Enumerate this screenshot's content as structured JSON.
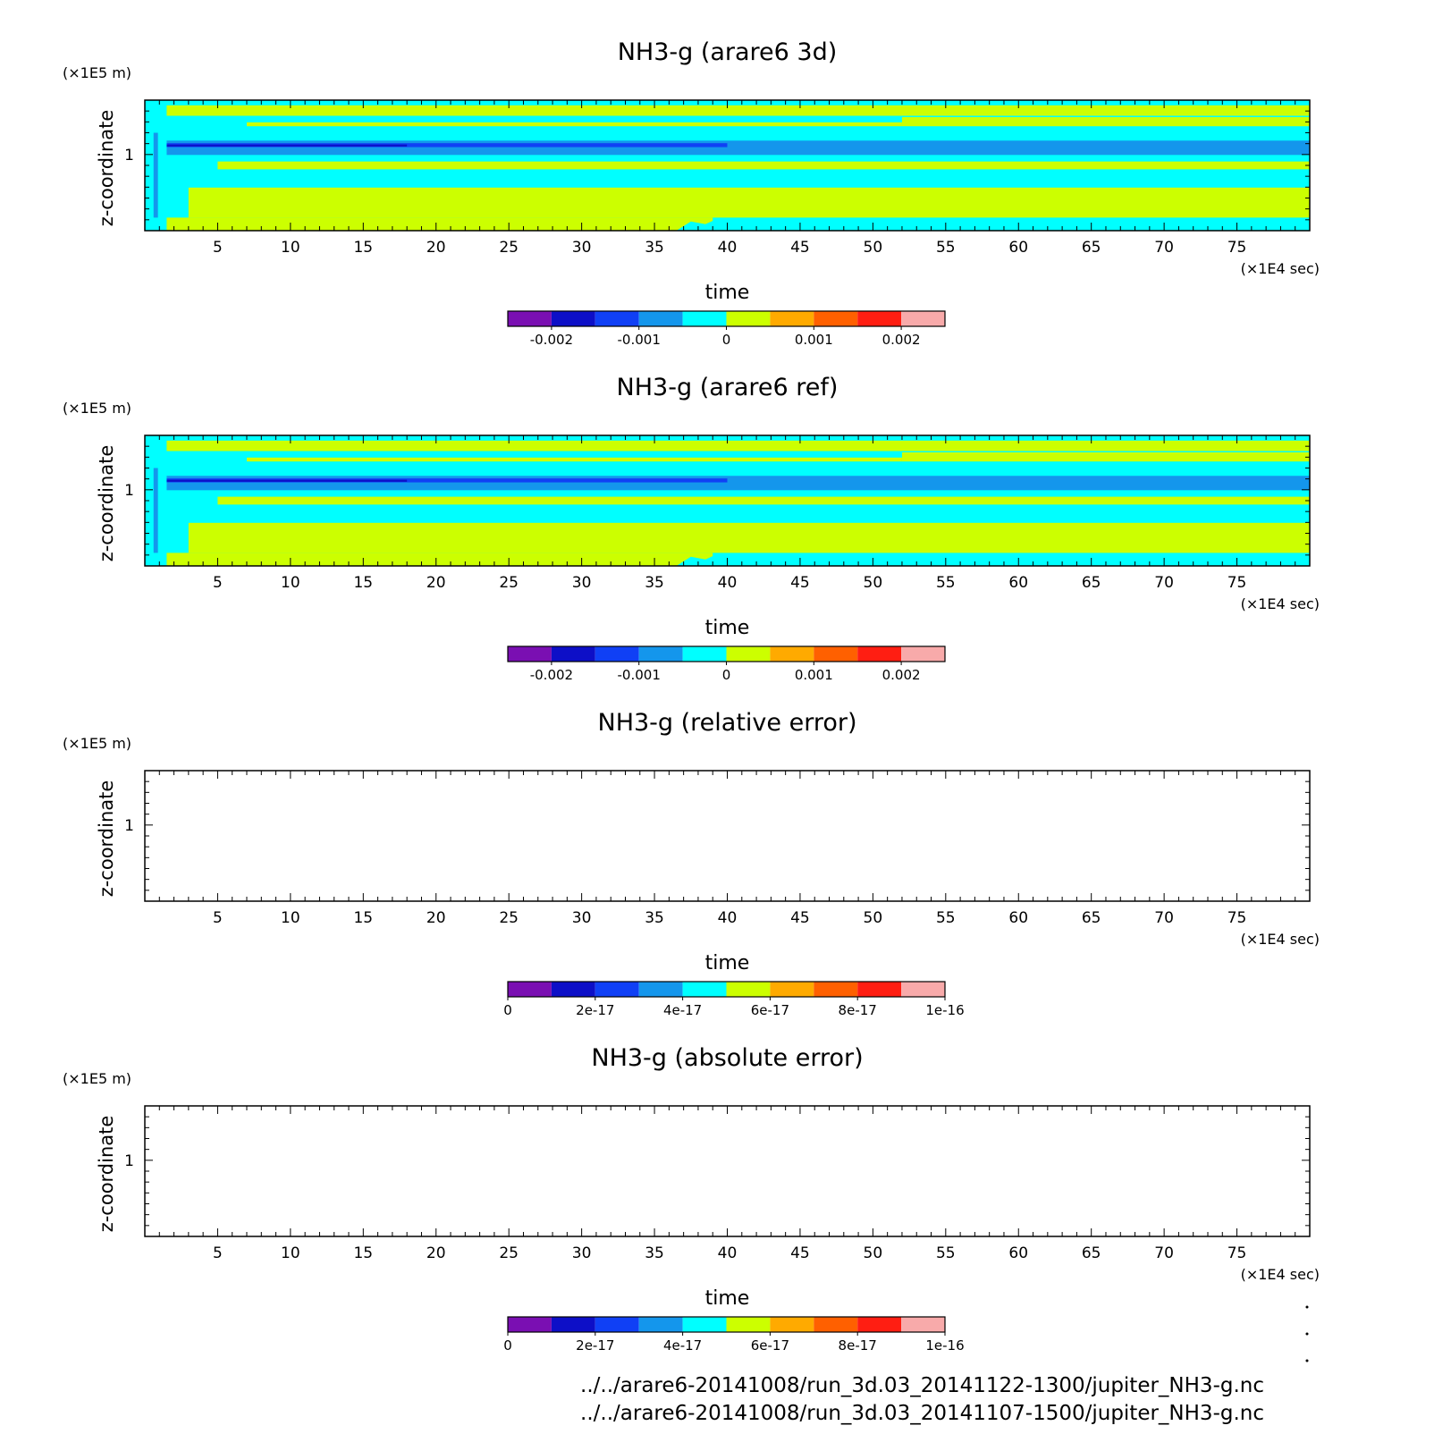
{
  "colors": {
    "levels": [
      "#7a0fb2",
      "#0d0fc7",
      "#1040f5",
      "#1496ec",
      "#00ffff",
      "#ccff00",
      "#ffaa00",
      "#ff6000",
      "#ff1e12",
      "#f8aaaa"
    ],
    "frame": "#000000"
  },
  "chart_data": [
    {
      "type": "heatmap",
      "title": "NH3-g (arare6 3d)",
      "xlabel": "time",
      "ylabel": "z-coordinate",
      "x_unit": "(×1E4 sec)",
      "y_unit": "(×1E5 m)",
      "xlim": [
        0,
        80
      ],
      "x_ticks": [
        "5",
        "10",
        "15",
        "20",
        "25",
        "30",
        "35",
        "40",
        "45",
        "50",
        "55",
        "60",
        "65",
        "70",
        "75"
      ],
      "y_ticks": [
        "1"
      ],
      "colorbar": {
        "boundaries": [
          -0.0025,
          -0.002,
          -0.0015,
          -0.001,
          -0.0005,
          0,
          0.0005,
          0.001,
          0.0015,
          0.002,
          0.0025
        ],
        "tick_labels": [
          "-0.002",
          "-0.001",
          "0",
          "0.001",
          "0.002"
        ],
        "tick_values": [
          -0.002,
          -0.001,
          0,
          0.001,
          0.002
        ]
      },
      "field": "banded"
    },
    {
      "type": "heatmap",
      "title": "NH3-g (arare6 ref)",
      "xlabel": "time",
      "ylabel": "z-coordinate",
      "x_unit": "(×1E4 sec)",
      "y_unit": "(×1E5 m)",
      "xlim": [
        0,
        80
      ],
      "x_ticks": [
        "5",
        "10",
        "15",
        "20",
        "25",
        "30",
        "35",
        "40",
        "45",
        "50",
        "55",
        "60",
        "65",
        "70",
        "75"
      ],
      "y_ticks": [
        "1"
      ],
      "colorbar": {
        "boundaries": [
          -0.0025,
          -0.002,
          -0.0015,
          -0.001,
          -0.0005,
          0,
          0.0005,
          0.001,
          0.0015,
          0.002,
          0.0025
        ],
        "tick_labels": [
          "-0.002",
          "-0.001",
          "0",
          "0.001",
          "0.002"
        ],
        "tick_values": [
          -0.002,
          -0.001,
          0,
          0.001,
          0.002
        ]
      },
      "field": "banded"
    },
    {
      "type": "heatmap",
      "title": "NH3-g (relative error)",
      "xlabel": "time",
      "ylabel": "z-coordinate",
      "x_unit": "(×1E4 sec)",
      "y_unit": "(×1E5 m)",
      "xlim": [
        0,
        80
      ],
      "x_ticks": [
        "5",
        "10",
        "15",
        "20",
        "25",
        "30",
        "35",
        "40",
        "45",
        "50",
        "55",
        "60",
        "65",
        "70",
        "75"
      ],
      "y_ticks": [
        "1"
      ],
      "colorbar": {
        "boundaries": [
          0,
          1e-17,
          2e-17,
          3e-17,
          4e-17,
          5e-17,
          6e-17,
          7e-17,
          8e-17,
          9e-17,
          1e-16
        ],
        "tick_labels": [
          "0",
          "2e-17",
          "4e-17",
          "6e-17",
          "8e-17",
          "1e-16"
        ],
        "tick_values": [
          0,
          2e-17,
          4e-17,
          6e-17,
          8e-17,
          1e-16
        ]
      },
      "field": "empty"
    },
    {
      "type": "heatmap",
      "title": "NH3-g (absolute error)",
      "xlabel": "time",
      "ylabel": "z-coordinate",
      "x_unit": "(×1E4 sec)",
      "y_unit": "(×1E5 m)",
      "xlim": [
        0,
        80
      ],
      "x_ticks": [
        "5",
        "10",
        "15",
        "20",
        "25",
        "30",
        "35",
        "40",
        "45",
        "50",
        "55",
        "60",
        "65",
        "70",
        "75"
      ],
      "y_ticks": [
        "1"
      ],
      "colorbar": {
        "boundaries": [
          0,
          1e-17,
          2e-17,
          3e-17,
          4e-17,
          5e-17,
          6e-17,
          7e-17,
          8e-17,
          9e-17,
          1e-16
        ],
        "tick_labels": [
          "0",
          "2e-17",
          "4e-17",
          "6e-17",
          "8e-17",
          "1e-16"
        ],
        "tick_values": [
          0,
          2e-17,
          4e-17,
          6e-17,
          8e-17,
          1e-16
        ]
      },
      "field": "empty"
    }
  ],
  "footer": {
    "line1": "../../arare6-20141008/run_3d.03_20141122-1300/jupiter_NH3-g.nc",
    "line2": "../../arare6-20141008/run_3d.03_20141107-1500/jupiter_NH3-g.nc"
  }
}
